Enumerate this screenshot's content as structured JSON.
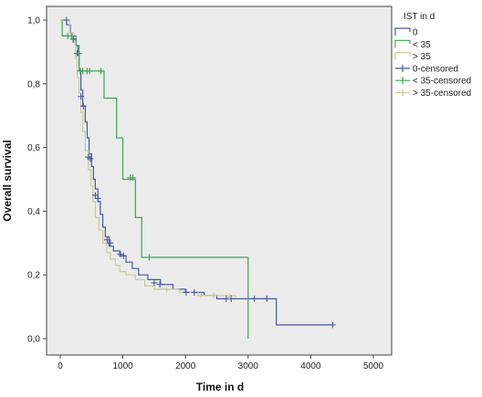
{
  "chart_data": {
    "type": "line",
    "subtype": "kaplan-meier-step",
    "title": "",
    "xlabel": "Time in d",
    "ylabel": "Overall survival",
    "xlim": [
      0,
      5000
    ],
    "ylim": [
      0,
      1
    ],
    "x_ticks": [
      0,
      1000,
      2000,
      3000,
      4000,
      5000
    ],
    "x_tick_labels": [
      "0",
      "1000",
      "2000",
      "3000",
      "4000",
      "5000"
    ],
    "y_ticks": [
      0,
      0.2,
      0.4,
      0.6,
      0.8,
      1.0
    ],
    "y_tick_labels": [
      "0,0",
      "0,2",
      "0,4",
      "0,6",
      "0,8",
      "1,0"
    ],
    "grid": false,
    "plot_background": "#ebebeb",
    "legend": {
      "title": "IST in d",
      "placement": "right",
      "entries": [
        "0",
        "< 35",
        "> 35",
        "0-censored",
        "< 35-censored",
        "> 35-censored"
      ]
    },
    "series": [
      {
        "name": "0",
        "color": "#4857a0",
        "steps": [
          [
            0,
            1.0
          ],
          [
            100,
            0.985
          ],
          [
            160,
            0.96
          ],
          [
            200,
            0.94
          ],
          [
            250,
            0.92
          ],
          [
            280,
            0.89
          ],
          [
            300,
            0.84
          ],
          [
            330,
            0.78
          ],
          [
            360,
            0.73
          ],
          [
            400,
            0.68
          ],
          [
            430,
            0.63
          ],
          [
            460,
            0.58
          ],
          [
            500,
            0.54
          ],
          [
            530,
            0.5
          ],
          [
            560,
            0.47
          ],
          [
            600,
            0.43
          ],
          [
            640,
            0.39
          ],
          [
            680,
            0.35
          ],
          [
            720,
            0.32
          ],
          [
            780,
            0.29
          ],
          [
            850,
            0.275
          ],
          [
            950,
            0.26
          ],
          [
            1050,
            0.24
          ],
          [
            1150,
            0.22
          ],
          [
            1250,
            0.2
          ],
          [
            1400,
            0.185
          ],
          [
            1600,
            0.17
          ],
          [
            1800,
            0.155
          ],
          [
            2000,
            0.145
          ],
          [
            2300,
            0.135
          ],
          [
            2500,
            0.125
          ],
          [
            3450,
            0.043
          ],
          [
            4350,
            0.043
          ]
        ],
        "censored": [
          [
            100,
            1.0
          ],
          [
            210,
            0.94
          ],
          [
            270,
            0.895
          ],
          [
            330,
            0.76
          ],
          [
            370,
            0.73
          ],
          [
            450,
            0.57
          ],
          [
            480,
            0.565
          ],
          [
            560,
            0.45
          ],
          [
            600,
            0.44
          ],
          [
            750,
            0.31
          ],
          [
            800,
            0.3
          ],
          [
            960,
            0.265
          ],
          [
            1010,
            0.26
          ],
          [
            1500,
            0.175
          ],
          [
            1590,
            0.17
          ],
          [
            2010,
            0.145
          ],
          [
            2140,
            0.145
          ],
          [
            2650,
            0.125
          ],
          [
            2730,
            0.125
          ],
          [
            3100,
            0.125
          ],
          [
            3300,
            0.125
          ],
          [
            4350,
            0.043
          ]
        ]
      },
      {
        "name": "< 35",
        "color": "#3aa655",
        "steps": [
          [
            0,
            1.0
          ],
          [
            30,
            0.95
          ],
          [
            250,
            0.92
          ],
          [
            300,
            0.84
          ],
          [
            700,
            0.755
          ],
          [
            900,
            0.63
          ],
          [
            1000,
            0.5
          ],
          [
            1200,
            0.38
          ],
          [
            1300,
            0.255
          ],
          [
            3000,
            0.0
          ]
        ],
        "censored": [
          [
            120,
            0.95
          ],
          [
            180,
            0.95
          ],
          [
            300,
            0.895
          ],
          [
            320,
            0.84
          ],
          [
            360,
            0.84
          ],
          [
            430,
            0.84
          ],
          [
            470,
            0.84
          ],
          [
            650,
            0.84
          ],
          [
            1120,
            0.505
          ],
          [
            1160,
            0.505
          ],
          [
            1420,
            0.255
          ]
        ]
      },
      {
        "name": "> 35",
        "color": "#c9c99a",
        "steps": [
          [
            0,
            1.0
          ],
          [
            150,
            0.96
          ],
          [
            200,
            0.93
          ],
          [
            240,
            0.88
          ],
          [
            270,
            0.82
          ],
          [
            300,
            0.77
          ],
          [
            330,
            0.71
          ],
          [
            360,
            0.65
          ],
          [
            400,
            0.59
          ],
          [
            450,
            0.53
          ],
          [
            490,
            0.48
          ],
          [
            520,
            0.43
          ],
          [
            560,
            0.38
          ],
          [
            620,
            0.34
          ],
          [
            680,
            0.3
          ],
          [
            740,
            0.27
          ],
          [
            800,
            0.25
          ],
          [
            880,
            0.23
          ],
          [
            950,
            0.21
          ],
          [
            1050,
            0.2
          ],
          [
            1200,
            0.185
          ],
          [
            1350,
            0.165
          ],
          [
            1500,
            0.155
          ],
          [
            1900,
            0.145
          ],
          [
            2200,
            0.135
          ],
          [
            2800,
            0.13
          ]
        ],
        "censored": [
          [
            1700,
            0.155
          ],
          [
            2250,
            0.135
          ],
          [
            2450,
            0.135
          ],
          [
            2700,
            0.13
          ]
        ]
      }
    ]
  }
}
